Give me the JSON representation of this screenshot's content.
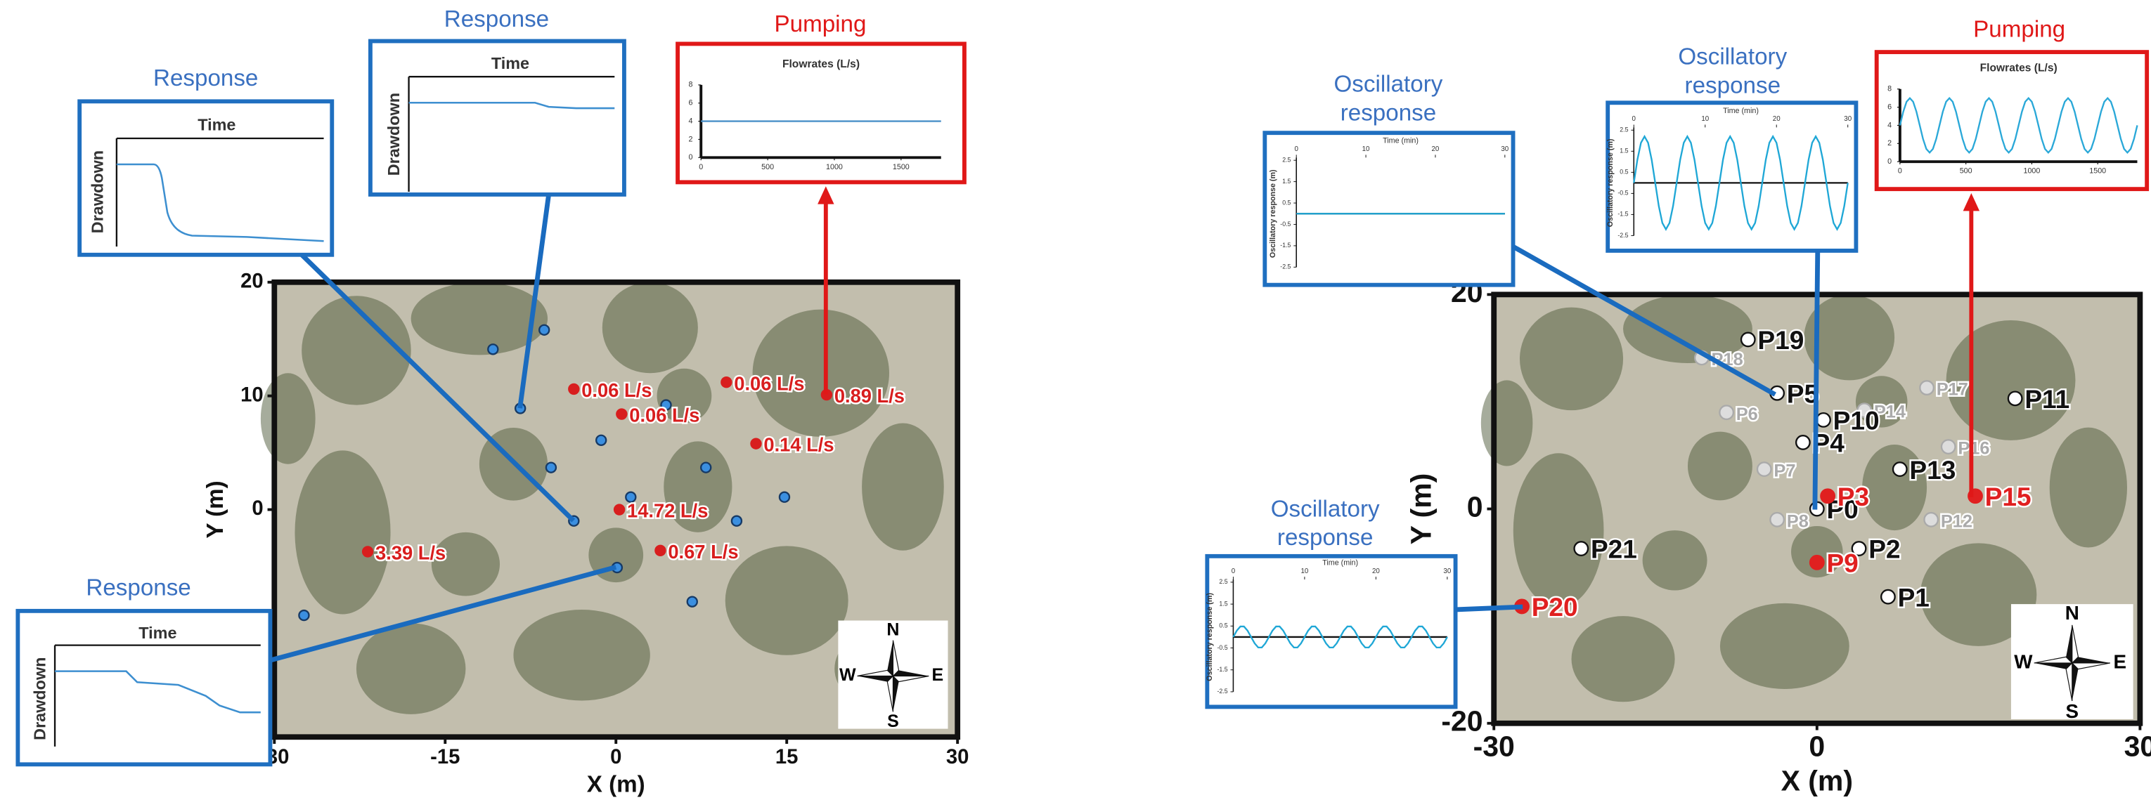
{
  "chart_data": [
    {
      "type": "scatter",
      "xlabel": "X (m)",
      "ylabel": "Y (m)",
      "xlim": [
        -30,
        30
      ],
      "ylim": [
        -20,
        20
      ],
      "xticks": [
        -30,
        -15,
        0,
        15,
        30
      ],
      "yticks": [
        0,
        10,
        20
      ],
      "compass": {
        "n": "N",
        "e": "E",
        "s": "S",
        "w": "W"
      },
      "series": [
        {
          "color": "#163a66",
          "fill": "#3b8fe0",
          "x": [
            -6.3,
            -10.8,
            -8.4,
            4.4,
            -1.3,
            -5.7,
            7.9,
            1.3,
            14.8,
            -3.7,
            10.6,
            0.1,
            6.7,
            -27.4
          ],
          "values": [
            15.8,
            14.1,
            8.9,
            9.2,
            6.1,
            3.7,
            3.7,
            1.1,
            1.1,
            -1.0,
            -1.0,
            -5.1,
            -8.1,
            -9.3
          ]
        },
        {
          "color": "#d81e1e",
          "fill": "#d81e1e",
          "x": [
            -3.7,
            0.5,
            9.7,
            18.5,
            12.3,
            0.3,
            3.9,
            -21.8
          ],
          "values": [
            10.6,
            8.4,
            11.2,
            10.1,
            5.8,
            0,
            -3.6,
            -3.7
          ],
          "labels": [
            "0.06 L/s",
            "0.06 L/s",
            "0.06 L/s",
            "0.89  L/s",
            "0.14 L/s",
            "14.72 L/s",
            "0.67 L/s",
            "3.39 L/s"
          ]
        }
      ]
    },
    {
      "type": "scatter",
      "xlabel": "X (m)",
      "ylabel": "Y (m)",
      "xlim": [
        -30,
        30
      ],
      "ylim": [
        -20,
        20
      ],
      "xticks": [
        -30,
        0,
        30
      ],
      "yticks": [
        -20,
        0,
        20
      ],
      "compass": {
        "n": "N",
        "e": "E",
        "s": "S",
        "w": "W"
      },
      "series": [
        {
          "color": "#aaaaaa",
          "fill": "#dddddd",
          "x": [
            -10.7,
            -8.4,
            4.4,
            10.2,
            12.2,
            -4.9,
            -3.7,
            10.6
          ],
          "values": [
            14.1,
            9.0,
            9.2,
            11.3,
            5.8,
            3.7,
            -1.0,
            -1.0
          ],
          "labels": [
            "P18",
            "P6",
            "P14",
            "P17",
            "P16",
            "P7",
            "P8",
            "P12"
          ]
        },
        {
          "color": "#111111",
          "fill": "#ffffff",
          "x": [
            -6.4,
            -3.7,
            0.6,
            -1.3,
            7.7,
            18.4,
            0,
            3.9,
            6.6,
            -21.9
          ],
          "values": [
            15.8,
            10.8,
            8.3,
            6.2,
            3.7,
            10.3,
            0,
            -3.7,
            -8.2,
            -3.7
          ],
          "labels": [
            "P19",
            "P5",
            "P10",
            "P4",
            "P13",
            "P11",
            "P0",
            "P2",
            "P1",
            "P21"
          ]
        },
        {
          "color": "#e02020",
          "fill": "#e02020",
          "x": [
            1.0,
            0,
            -27.4,
            14.7
          ],
          "values": [
            1.2,
            -5.0,
            -9.1,
            1.2
          ],
          "labels": [
            "P3",
            "P9",
            "P20",
            "P15"
          ]
        }
      ]
    },
    {
      "type": "line",
      "title": "Pumping",
      "subtitle": "Flowrates (L/s)",
      "color": "#4a90c8",
      "xlim": [
        0,
        1800
      ],
      "ylim": [
        0,
        8
      ],
      "xticks": [
        0,
        500,
        1000,
        1500
      ],
      "yticks": [
        0,
        2,
        4,
        6,
        8
      ],
      "x": [
        0,
        1800
      ],
      "values": [
        4,
        4
      ]
    },
    {
      "type": "line",
      "title": "Pumping",
      "subtitle": "Flowrates (L/s)",
      "color": "#2aa8d8",
      "xlim": [
        0,
        1800
      ],
      "ylim": [
        0,
        8
      ],
      "xticks": [
        0,
        500,
        1000,
        1500
      ],
      "yticks": [
        0,
        2,
        4,
        6,
        8
      ],
      "x": [
        0,
        25,
        50,
        75,
        100,
        125,
        150,
        175,
        200,
        225,
        250,
        275,
        300,
        325,
        350,
        375,
        400,
        425,
        450,
        475,
        500,
        525,
        550,
        575,
        600,
        625,
        650,
        675,
        700,
        725,
        750,
        775,
        800,
        825,
        850,
        875,
        900,
        925,
        950,
        975,
        1000,
        1025,
        1050,
        1075,
        1100,
        1125,
        1150,
        1175,
        1200,
        1225,
        1250,
        1275,
        1300,
        1325,
        1350,
        1375,
        1400,
        1425,
        1450,
        1475,
        1500,
        1525,
        1550,
        1575,
        1600,
        1625,
        1650,
        1675,
        1700,
        1725,
        1750,
        1775,
        1800
      ],
      "values": [
        4,
        5.5,
        6.6,
        7,
        6.6,
        5.5,
        4,
        2.5,
        1.4,
        1,
        1.4,
        2.5,
        4,
        5.5,
        6.6,
        7,
        6.6,
        5.5,
        4,
        2.5,
        1.4,
        1,
        1.4,
        2.5,
        4,
        5.5,
        6.6,
        7,
        6.6,
        5.5,
        4,
        2.5,
        1.4,
        1,
        1.4,
        2.5,
        4,
        5.5,
        6.6,
        7,
        6.6,
        5.5,
        4,
        2.5,
        1.4,
        1,
        1.4,
        2.5,
        4,
        5.5,
        6.6,
        7,
        6.6,
        5.5,
        4,
        2.5,
        1.4,
        1,
        1.4,
        2.5,
        4,
        5.5,
        6.6,
        7,
        6.6,
        5.5,
        4,
        2.5,
        1.4,
        1,
        1.4,
        2.5,
        4
      ]
    },
    {
      "type": "oscillation",
      "title": "Oscillatory response",
      "subtitle": "Time (min)",
      "ylabel": "Oscillatory response (m)",
      "color": "#1fa7d6",
      "xlim": [
        0,
        30
      ],
      "ylim": [
        -2.5,
        2.5
      ],
      "xticks": [
        0,
        10,
        20,
        30
      ],
      "yticks": [
        2.5,
        1.5,
        0.5,
        -0.5,
        -1.5,
        -2.5
      ],
      "x": [
        0,
        30
      ],
      "values": [
        0,
        0
      ]
    },
    {
      "type": "oscillation",
      "title": "Oscillatory response",
      "subtitle": "Time (min)",
      "ylabel": "Oscillatory response (m)",
      "color": "#1fa7d6",
      "xlim": [
        0,
        30
      ],
      "ylim": [
        -2.5,
        2.5
      ],
      "xticks": [
        0,
        10,
        20,
        30
      ],
      "yticks": [
        2.5,
        1.5,
        0.5,
        -0.5,
        -1.5,
        -2.5
      ],
      "x": [
        0,
        0.5,
        1,
        1.5,
        2,
        2.5,
        3,
        3.5,
        4,
        4.5,
        5,
        5.5,
        6,
        6.5,
        7,
        7.5,
        8,
        8.5,
        9,
        9.5,
        10,
        10.5,
        11,
        11.5,
        12,
        12.5,
        13,
        13.5,
        14,
        14.5,
        15,
        15.5,
        16,
        16.5,
        17,
        17.5,
        18,
        18.5,
        19,
        19.5,
        20,
        20.5,
        21,
        21.5,
        22,
        22.5,
        23,
        23.5,
        24,
        24.5,
        25,
        25.5,
        26,
        26.5,
        27,
        27.5,
        28,
        28.5,
        29,
        29.5,
        30
      ],
      "values": [
        0,
        1.1,
        1.9,
        2.2,
        1.9,
        1.1,
        0,
        -1.1,
        -1.9,
        -2.2,
        -1.9,
        -1.1,
        0,
        1.1,
        1.9,
        2.2,
        1.9,
        1.1,
        0,
        -1.1,
        -1.9,
        -2.2,
        -1.9,
        -1.1,
        0,
        1.1,
        1.9,
        2.2,
        1.9,
        1.1,
        0,
        -1.1,
        -1.9,
        -2.2,
        -1.9,
        -1.1,
        0,
        1.1,
        1.9,
        2.2,
        1.9,
        1.1,
        0,
        -1.1,
        -1.9,
        -2.2,
        -1.9,
        -1.1,
        0,
        1.1,
        1.9,
        2.2,
        1.9,
        1.1,
        0,
        -1.1,
        -1.9,
        -2.2,
        -1.9,
        -1.1,
        0
      ]
    },
    {
      "type": "oscillation",
      "title": "Oscillatory response",
      "subtitle": "Time (min)",
      "ylabel": "Oscillatory response (m)",
      "color": "#1fa7d6",
      "xlim": [
        0,
        30
      ],
      "ylim": [
        -2.5,
        2.5
      ],
      "xticks": [
        0,
        10,
        20,
        30
      ],
      "yticks": [
        2.5,
        1.5,
        0.5,
        -0.5,
        -1.5,
        -2.5
      ],
      "x": [
        0,
        0.5,
        1,
        1.5,
        2,
        2.5,
        3,
        3.5,
        4,
        4.5,
        5,
        5.5,
        6,
        6.5,
        7,
        7.5,
        8,
        8.5,
        9,
        9.5,
        10,
        10.5,
        11,
        11.5,
        12,
        12.5,
        13,
        13.5,
        14,
        14.5,
        15,
        15.5,
        16,
        16.5,
        17,
        17.5,
        18,
        18.5,
        19,
        19.5,
        20,
        20.5,
        21,
        21.5,
        22,
        22.5,
        23,
        23.5,
        24,
        24.5,
        25,
        25.5,
        26,
        26.5,
        27,
        27.5,
        28,
        28.5,
        29,
        29.5,
        30
      ],
      "values": [
        0,
        0.29,
        0.48,
        0.48,
        0.29,
        0,
        -0.29,
        -0.48,
        -0.48,
        -0.29,
        0,
        0.29,
        0.48,
        0.48,
        0.29,
        0,
        -0.29,
        -0.48,
        -0.48,
        -0.29,
        0,
        0.29,
        0.48,
        0.48,
        0.29,
        0,
        -0.29,
        -0.48,
        -0.48,
        -0.29,
        0,
        0.29,
        0.48,
        0.48,
        0.29,
        0,
        -0.29,
        -0.48,
        -0.48,
        -0.29,
        0,
        0.29,
        0.48,
        0.48,
        0.29,
        0,
        -0.29,
        -0.48,
        -0.48,
        -0.29,
        0,
        0.29,
        0.48,
        0.48,
        0.29,
        0,
        -0.29,
        -0.48,
        -0.48,
        -0.29,
        0
      ]
    }
  ],
  "insets": [
    {
      "title": "Response",
      "xlabel": "Time",
      "ylabel": "Drawdown"
    },
    {
      "title": "Response",
      "xlabel": "Time",
      "ylabel": "Drawdown"
    },
    {
      "title": "Response",
      "xlabel": "Time",
      "ylabel": "Drawdown"
    }
  ]
}
